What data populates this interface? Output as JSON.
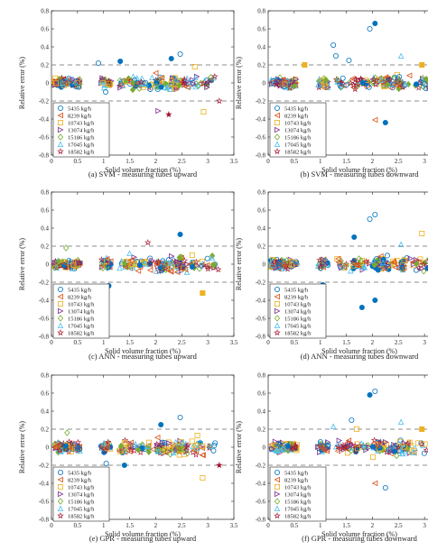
{
  "figure": {
    "legend_entries": [
      "5435 kg/h",
      "8239 kg/h",
      "10743 kg/h",
      "13074 kg/h",
      "15186 kg/h",
      "17045 kg/h",
      "18582 kg/h"
    ],
    "series_colors": [
      "#0072bd",
      "#d95319",
      "#edb120",
      "#7e2f8e",
      "#77ac30",
      "#4dbeee",
      "#a2142f"
    ],
    "series_markers": [
      "circle",
      "triangle-left",
      "square",
      "triangle-right",
      "diamond",
      "triangle-up",
      "star"
    ],
    "reference_lines": [
      0.2,
      -0.2
    ]
  },
  "chart_data": [
    {
      "type": "scatter",
      "caption": "(a) SVM - measuring tubes upward",
      "xlabel": "Solid volume fraction (%)",
      "ylabel": "Relative error (%)",
      "xlim": [
        0,
        3.5
      ],
      "ylim": [
        -0.8,
        0.8
      ],
      "xticks": [
        "0",
        "0.5",
        "1",
        "1.5",
        "2",
        "2.5",
        "3",
        "3.5"
      ],
      "yticks": [
        "0.8",
        "0.6",
        "0.4",
        "0.2",
        "0",
        "-0.2",
        "-0.4",
        "-0.6",
        "-0.8"
      ],
      "grid": false,
      "legend_position": "bottom-left",
      "outliers": [
        {
          "x": 1.32,
          "y": 0.24,
          "s": 0
        },
        {
          "x": 2.3,
          "y": 0.27,
          "s": 0
        },
        {
          "x": 2.47,
          "y": 0.32,
          "s": 0
        },
        {
          "x": 0.9,
          "y": 0.22,
          "s": 0
        },
        {
          "x": 2.92,
          "y": -0.32,
          "s": 2
        },
        {
          "x": 2.75,
          "y": 0.18,
          "s": 2
        },
        {
          "x": 2.05,
          "y": -0.31,
          "s": 3
        },
        {
          "x": 2.25,
          "y": -0.35,
          "s": 6
        },
        {
          "x": 1.04,
          "y": -0.1,
          "s": 0
        },
        {
          "x": 2.0,
          "y": 0.11,
          "s": 1
        },
        {
          "x": 2.6,
          "y": 0.05,
          "s": 5
        },
        {
          "x": 3.22,
          "y": -0.2,
          "s": 6
        }
      ]
    },
    {
      "type": "scatter",
      "caption": "(b) SVM - measuring tubes downward",
      "xlabel": "Solid volume fraction (%)",
      "ylabel": "Relative error (%)",
      "xlim": [
        0,
        3.5
      ],
      "ylim": [
        -0.8,
        0.8
      ],
      "xticks": [
        "0",
        "0.5",
        "1",
        "1.5",
        "2",
        "2.5",
        "3",
        "3.5"
      ],
      "yticks": [
        "0.8",
        "0.6",
        "0.4",
        "0.2",
        "0",
        "-0.2",
        "-0.4",
        "-0.6",
        "-0.8"
      ],
      "grid": false,
      "legend_position": "bottom-left",
      "outliers": [
        {
          "x": 1.95,
          "y": 0.6,
          "s": 0
        },
        {
          "x": 2.05,
          "y": 0.66,
          "s": 0
        },
        {
          "x": 1.55,
          "y": 0.25,
          "s": 0
        },
        {
          "x": 1.25,
          "y": 0.42,
          "s": 0
        },
        {
          "x": 2.05,
          "y": -0.41,
          "s": 1
        },
        {
          "x": 2.25,
          "y": -0.44,
          "s": 0
        },
        {
          "x": 1.05,
          "y": -0.3,
          "s": 0
        },
        {
          "x": 2.55,
          "y": 0.3,
          "s": 5
        },
        {
          "x": 2.95,
          "y": 0.2,
          "s": 2
        },
        {
          "x": 1.3,
          "y": 0.3,
          "s": 0
        },
        {
          "x": 0.7,
          "y": 0.2,
          "s": 2
        }
      ]
    },
    {
      "type": "scatter",
      "caption": "(c) ANN - measuring tubes upward",
      "xlabel": "Solid volume fraction (%)",
      "ylabel": "Relative error (%)",
      "xlim": [
        0,
        3.5
      ],
      "ylim": [
        -0.8,
        0.8
      ],
      "xticks": [
        "0",
        "0.5",
        "1",
        "1.5",
        "2",
        "2.5",
        "3",
        "3.5"
      ],
      "yticks": [
        "0.8",
        "0.6",
        "0.4",
        "0.2",
        "0",
        "-0.2",
        "-0.4",
        "-0.6",
        "-0.8"
      ],
      "grid": false,
      "legend_position": "bottom-left",
      "outliers": [
        {
          "x": 2.47,
          "y": 0.33,
          "s": 0
        },
        {
          "x": 1.1,
          "y": -0.24,
          "s": 0
        },
        {
          "x": 1.04,
          "y": -0.38,
          "s": 0
        },
        {
          "x": 2.9,
          "y": -0.32,
          "s": 2
        },
        {
          "x": 3.2,
          "y": -0.06,
          "s": 6
        },
        {
          "x": 1.85,
          "y": 0.24,
          "s": 6
        },
        {
          "x": 1.5,
          "y": 0.12,
          "s": 5
        },
        {
          "x": 0.28,
          "y": 0.18,
          "s": 4
        },
        {
          "x": 2.7,
          "y": 0.1,
          "s": 2
        }
      ]
    },
    {
      "type": "scatter",
      "caption": "(d) ANN - measuring tubes downward",
      "xlabel": "Solid volume fraction (%)",
      "ylabel": "Relative error (%)",
      "xlim": [
        0,
        3.5
      ],
      "ylim": [
        -0.8,
        0.8
      ],
      "xticks": [
        "0",
        "0.5",
        "1",
        "1.5",
        "2",
        "2.5",
        "3",
        "3.5"
      ],
      "yticks": [
        "0.8",
        "0.6",
        "0.4",
        "0.2",
        "0",
        "-0.2",
        "-0.4",
        "-0.6",
        "-0.8"
      ],
      "grid": false,
      "legend_position": "bottom-left",
      "outliers": [
        {
          "x": 1.95,
          "y": 0.5,
          "s": 0
        },
        {
          "x": 2.05,
          "y": 0.55,
          "s": 0
        },
        {
          "x": 1.8,
          "y": -0.48,
          "s": 0
        },
        {
          "x": 2.05,
          "y": -0.4,
          "s": 0
        },
        {
          "x": 2.95,
          "y": 0.34,
          "s": 2
        },
        {
          "x": 1.65,
          "y": 0.3,
          "s": 0
        },
        {
          "x": 2.55,
          "y": 0.22,
          "s": 5
        },
        {
          "x": 1.05,
          "y": -0.23,
          "s": 0
        }
      ]
    },
    {
      "type": "scatter",
      "caption": "(e) GPR - measuring tubes upward",
      "xlabel": "Solid volume fraction (%)",
      "ylabel": "Relative error (%)",
      "xlim": [
        0,
        3.5
      ],
      "ylim": [
        -0.8,
        0.8
      ],
      "xticks": [
        "0",
        "0.5",
        "1",
        "1.5",
        "2",
        "2.5",
        "3",
        "3.5"
      ],
      "yticks": [
        "0.8",
        "0.6",
        "0.4",
        "0.2",
        "0",
        "-0.2",
        "-0.4",
        "-0.6",
        "-0.8"
      ],
      "grid": false,
      "legend_position": "bottom-left",
      "outliers": [
        {
          "x": 2.47,
          "y": 0.33,
          "s": 0
        },
        {
          "x": 2.1,
          "y": 0.25,
          "s": 0
        },
        {
          "x": 2.9,
          "y": -0.34,
          "s": 2
        },
        {
          "x": 1.05,
          "y": -0.18,
          "s": 0
        },
        {
          "x": 3.22,
          "y": -0.2,
          "s": 6
        },
        {
          "x": 2.8,
          "y": 0.13,
          "s": 2
        },
        {
          "x": 0.3,
          "y": 0.16,
          "s": 4
        },
        {
          "x": 1.4,
          "y": -0.2,
          "s": 0
        }
      ]
    },
    {
      "type": "scatter",
      "caption": "(f) GPR - measuring tubes downward",
      "xlabel": "Solid volume fraction (%)",
      "ylabel": "Relative error (%)",
      "xlim": [
        0,
        3.5
      ],
      "ylim": [
        -0.8,
        0.8
      ],
      "xticks": [
        "0",
        "0.5",
        "1",
        "1.5",
        "2",
        "2.5",
        "3",
        "3.5"
      ],
      "yticks": [
        "0.8",
        "0.6",
        "0.4",
        "0.2",
        "0",
        "-0.2",
        "-0.4",
        "-0.6",
        "-0.8"
      ],
      "grid": false,
      "legend_position": "bottom-left",
      "outliers": [
        {
          "x": 1.95,
          "y": 0.58,
          "s": 0
        },
        {
          "x": 2.05,
          "y": 0.62,
          "s": 0
        },
        {
          "x": 1.6,
          "y": 0.3,
          "s": 0
        },
        {
          "x": 2.05,
          "y": -0.4,
          "s": 1
        },
        {
          "x": 2.25,
          "y": -0.45,
          "s": 0
        },
        {
          "x": 1.05,
          "y": -0.3,
          "s": 0
        },
        {
          "x": 2.55,
          "y": 0.28,
          "s": 5
        },
        {
          "x": 1.25,
          "y": 0.23,
          "s": 5
        },
        {
          "x": 2.95,
          "y": 0.2,
          "s": 2
        },
        {
          "x": 1.7,
          "y": 0.2,
          "s": 2
        }
      ]
    }
  ]
}
